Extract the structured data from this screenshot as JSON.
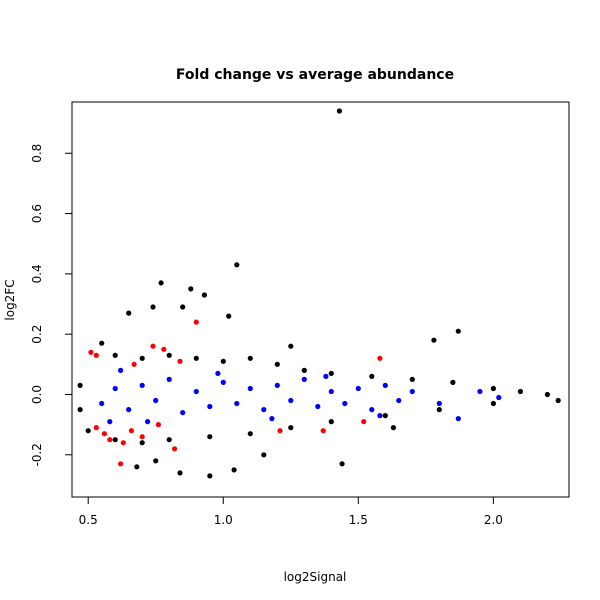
{
  "chart_data": {
    "type": "scatter",
    "title": "Fold change vs average abundance",
    "xlabel": "log2Signal",
    "ylabel": "log2FC",
    "xlim": [
      0.44,
      2.28
    ],
    "ylim": [
      -0.34,
      0.97
    ],
    "x_ticks": [
      0.5,
      1.0,
      1.5,
      2.0
    ],
    "x_tick_labels": [
      "0.5",
      "1.0",
      "1.5",
      "2.0"
    ],
    "y_ticks": [
      -0.2,
      0.0,
      0.2,
      0.4,
      0.6,
      0.8
    ],
    "y_tick_labels": [
      "-0.2",
      "0.0",
      "0.2",
      "0.4",
      "0.6",
      "0.8"
    ],
    "grid": false,
    "legend": "none",
    "colors": {
      "background_points": "#000000",
      "highlight_a": "#0000ff",
      "highlight_b": "#ff0000"
    },
    "series": [
      {
        "color": "#000000",
        "points": [
          [
            1.43,
            0.94
          ],
          [
            1.05,
            0.43
          ],
          [
            0.77,
            0.37
          ],
          [
            0.88,
            0.35
          ],
          [
            0.93,
            0.33
          ],
          [
            0.74,
            0.29
          ],
          [
            0.85,
            0.29
          ],
          [
            1.02,
            0.26
          ],
          [
            0.65,
            0.27
          ],
          [
            1.87,
            0.21
          ],
          [
            1.78,
            0.18
          ],
          [
            0.55,
            0.17
          ],
          [
            1.25,
            0.16
          ],
          [
            1.44,
            -0.23
          ],
          [
            0.95,
            -0.27
          ],
          [
            0.84,
            -0.26
          ],
          [
            1.04,
            -0.25
          ],
          [
            0.68,
            -0.24
          ],
          [
            1.15,
            -0.2
          ],
          [
            0.75,
            -0.22
          ],
          [
            0.6,
            0.13
          ],
          [
            0.7,
            0.12
          ],
          [
            0.8,
            0.13
          ],
          [
            0.9,
            0.12
          ],
          [
            1.0,
            0.11
          ],
          [
            1.1,
            0.12
          ],
          [
            1.2,
            0.1
          ],
          [
            1.3,
            0.08
          ],
          [
            1.4,
            0.07
          ],
          [
            1.55,
            0.06
          ],
          [
            1.7,
            0.05
          ],
          [
            1.85,
            0.04
          ],
          [
            2.0,
            0.02
          ],
          [
            2.1,
            0.01
          ],
          [
            2.2,
            0.0
          ],
          [
            2.24,
            -0.02
          ],
          [
            0.5,
            -0.12
          ],
          [
            0.6,
            -0.15
          ],
          [
            0.7,
            -0.16
          ],
          [
            0.8,
            -0.15
          ],
          [
            0.95,
            -0.14
          ],
          [
            1.1,
            -0.13
          ],
          [
            1.25,
            -0.11
          ],
          [
            1.4,
            -0.09
          ],
          [
            1.6,
            -0.07
          ],
          [
            1.8,
            -0.05
          ],
          [
            2.0,
            -0.03
          ],
          [
            0.47,
            0.03
          ],
          [
            0.47,
            -0.05
          ],
          [
            1.63,
            -0.11
          ]
        ]
      },
      {
        "color": "#0000ff",
        "points": [
          [
            0.55,
            -0.03
          ],
          [
            0.6,
            0.02
          ],
          [
            0.65,
            -0.05
          ],
          [
            0.7,
            0.03
          ],
          [
            0.75,
            -0.02
          ],
          [
            0.8,
            0.05
          ],
          [
            0.85,
            -0.06
          ],
          [
            0.9,
            0.01
          ],
          [
            0.95,
            -0.04
          ],
          [
            1.0,
            0.04
          ],
          [
            1.05,
            -0.03
          ],
          [
            1.1,
            0.02
          ],
          [
            1.15,
            -0.05
          ],
          [
            1.2,
            0.03
          ],
          [
            1.25,
            -0.02
          ],
          [
            1.3,
            0.05
          ],
          [
            1.35,
            -0.04
          ],
          [
            1.4,
            0.01
          ],
          [
            1.45,
            -0.03
          ],
          [
            1.5,
            0.02
          ],
          [
            1.55,
            -0.05
          ],
          [
            1.6,
            0.03
          ],
          [
            1.65,
            -0.02
          ],
          [
            1.7,
            0.01
          ],
          [
            1.8,
            -0.03
          ],
          [
            1.87,
            -0.08
          ],
          [
            1.95,
            0.01
          ],
          [
            2.02,
            -0.01
          ],
          [
            0.62,
            0.08
          ],
          [
            0.72,
            -0.09
          ],
          [
            0.98,
            0.07
          ],
          [
            1.18,
            -0.08
          ],
          [
            1.38,
            0.06
          ],
          [
            1.58,
            -0.07
          ],
          [
            0.58,
            -0.09
          ]
        ]
      },
      {
        "color": "#ff0000",
        "points": [
          [
            0.51,
            0.14
          ],
          [
            0.53,
            0.13
          ],
          [
            0.9,
            0.24
          ],
          [
            0.67,
            0.1
          ],
          [
            0.74,
            0.16
          ],
          [
            0.78,
            0.15
          ],
          [
            0.84,
            0.11
          ],
          [
            0.56,
            -0.13
          ],
          [
            0.58,
            -0.15
          ],
          [
            0.63,
            -0.16
          ],
          [
            0.66,
            -0.12
          ],
          [
            0.7,
            -0.14
          ],
          [
            0.76,
            -0.1
          ],
          [
            0.82,
            -0.18
          ],
          [
            0.53,
            -0.11
          ],
          [
            1.21,
            -0.12
          ],
          [
            1.37,
            -0.12
          ],
          [
            1.52,
            -0.09
          ],
          [
            1.58,
            0.12
          ],
          [
            0.62,
            -0.23
          ]
        ]
      }
    ]
  }
}
